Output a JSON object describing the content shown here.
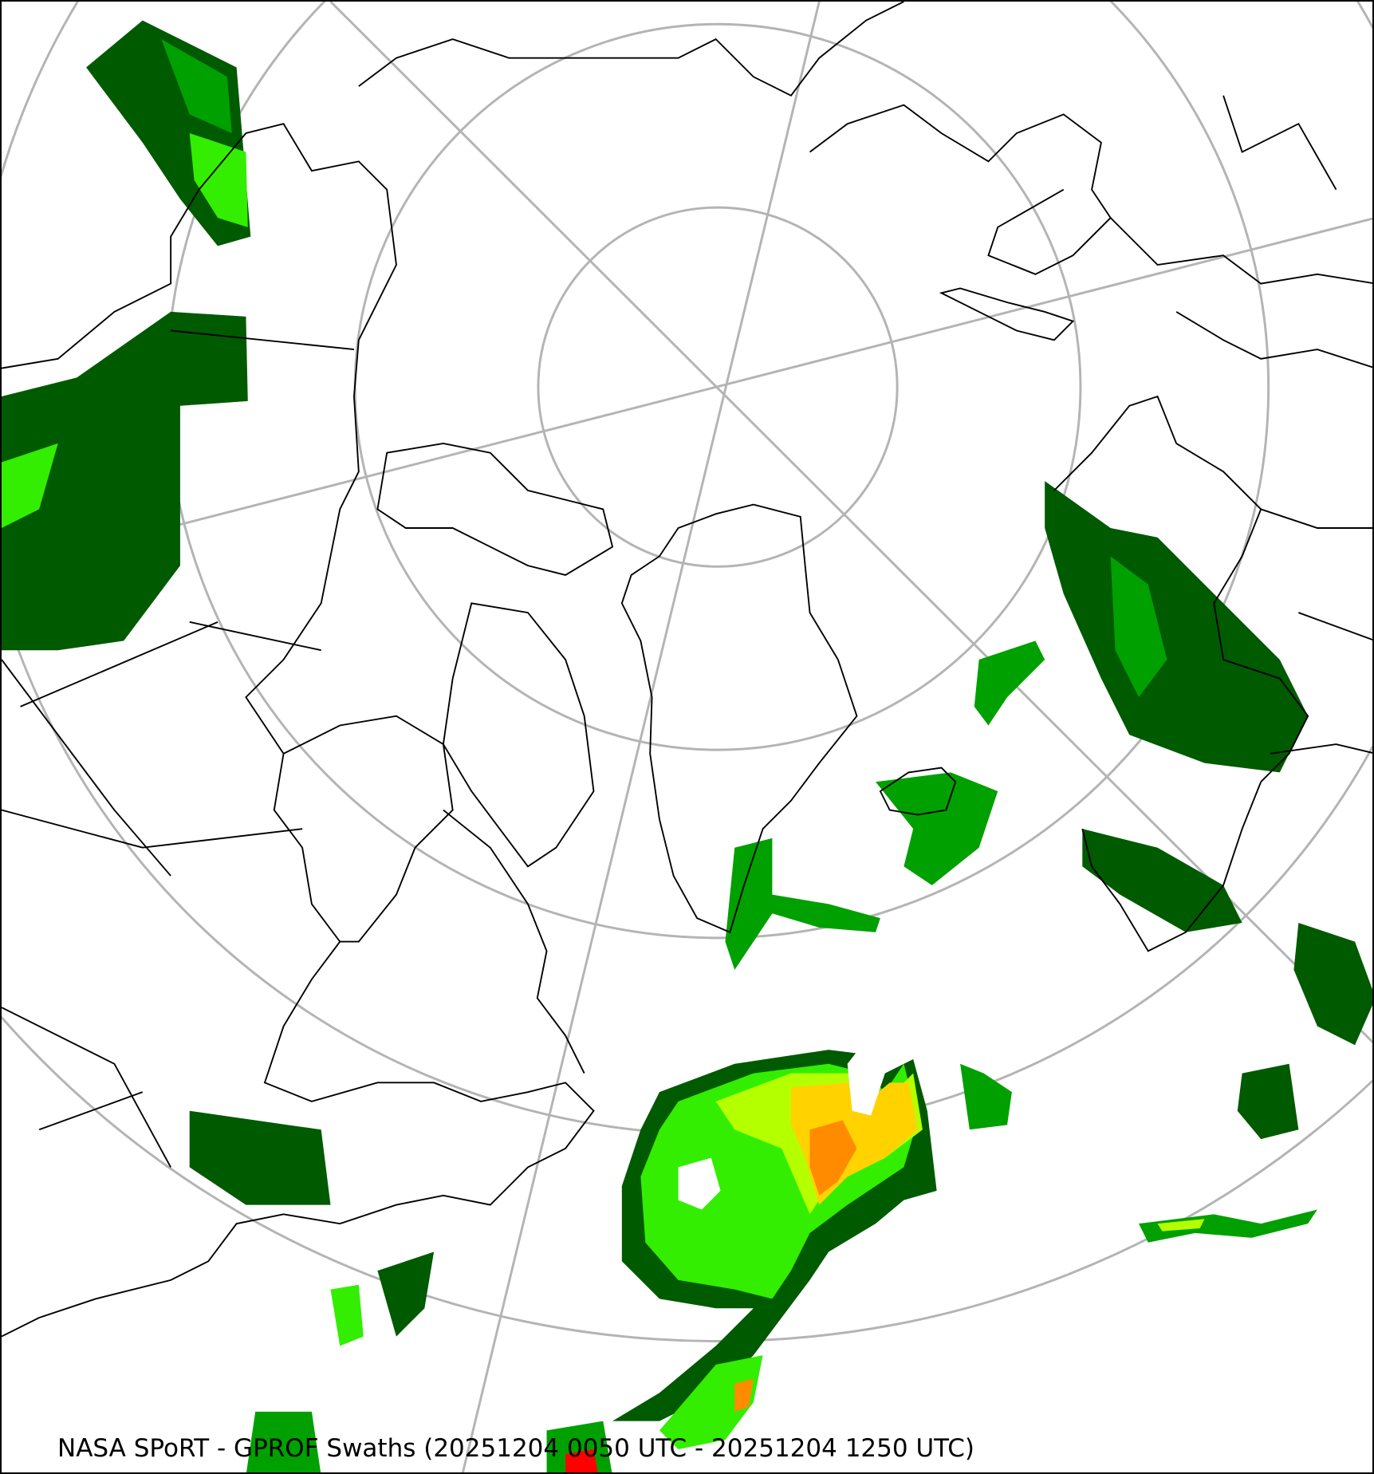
{
  "map": {
    "caption": "NASA SPoRT - GPROF Swaths (20251204 0050 UTC - 20251204 1250 UTC)",
    "projection": "north-polar-stereographic",
    "colors": {
      "coastline": "#000000",
      "graticule": "#b4b4b4",
      "precip_very_light": "#005a00",
      "precip_light": "#00a000",
      "precip_moderate": "#33ee00",
      "precip_moderate_heavy": "#b4ff00",
      "precip_heavy": "#ffd200",
      "precip_very_heavy": "#ff8c00",
      "precip_extreme": "#ff0000"
    }
  }
}
